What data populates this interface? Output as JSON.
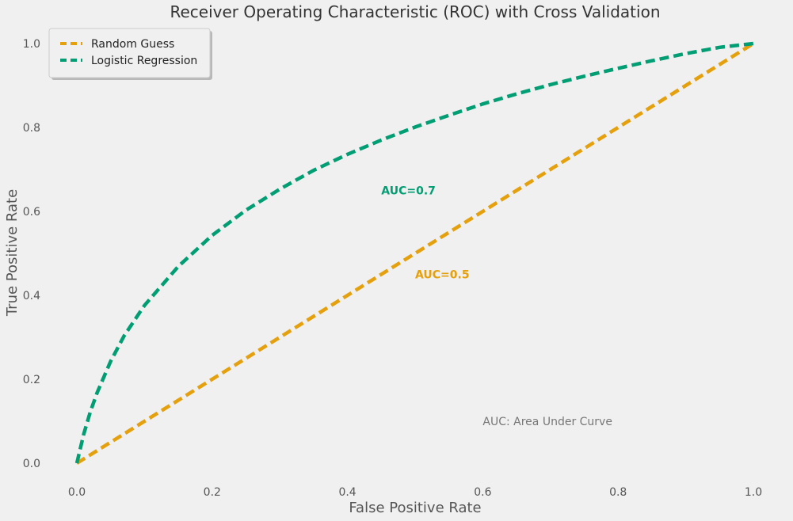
{
  "chart_data": {
    "type": "line",
    "title": "Receiver Operating Characteristic (ROC) with Cross Validation",
    "xlabel": "False Positive Rate",
    "ylabel": "True Positive Rate",
    "xlim": [
      -0.05,
      1.05
    ],
    "ylim": [
      -0.05,
      1.05
    ],
    "xticks": [
      "0.0",
      "0.2",
      "0.4",
      "0.6",
      "0.8",
      "1.0"
    ],
    "yticks": [
      "0.0",
      "0.2",
      "0.4",
      "0.6",
      "0.8",
      "1.0"
    ],
    "grid": false,
    "legend_position": "top-left",
    "series": [
      {
        "name": "Random Guess",
        "color": "#e5a00d",
        "x": [
          0,
          1
        ],
        "y": [
          0,
          1
        ]
      },
      {
        "name": "Logistic Regression",
        "color": "#029e73",
        "x": [
          0,
          0.01,
          0.02,
          0.03,
          0.05,
          0.07,
          0.1,
          0.15,
          0.2,
          0.25,
          0.3,
          0.35,
          0.4,
          0.45,
          0.5,
          0.55,
          0.6,
          0.65,
          0.7,
          0.75,
          0.8,
          0.85,
          0.9,
          0.95,
          1.0
        ],
        "y": [
          0,
          0.068,
          0.123,
          0.168,
          0.243,
          0.304,
          0.376,
          0.469,
          0.543,
          0.603,
          0.653,
          0.698,
          0.736,
          0.77,
          0.801,
          0.829,
          0.856,
          0.88,
          0.902,
          0.922,
          0.941,
          0.959,
          0.976,
          0.991,
          1.0
        ]
      }
    ],
    "annotations": [
      {
        "text": "AUC=0.7",
        "x": 0.45,
        "y": 0.65,
        "color": "#029e73",
        "bold": true
      },
      {
        "text": "AUC=0.5",
        "x": 0.5,
        "y": 0.45,
        "color": "#e5a00d",
        "bold": true
      },
      {
        "text": "AUC: Area Under Curve",
        "x": 0.6,
        "y": 0.1,
        "color": "#777777",
        "bold": false
      }
    ]
  }
}
